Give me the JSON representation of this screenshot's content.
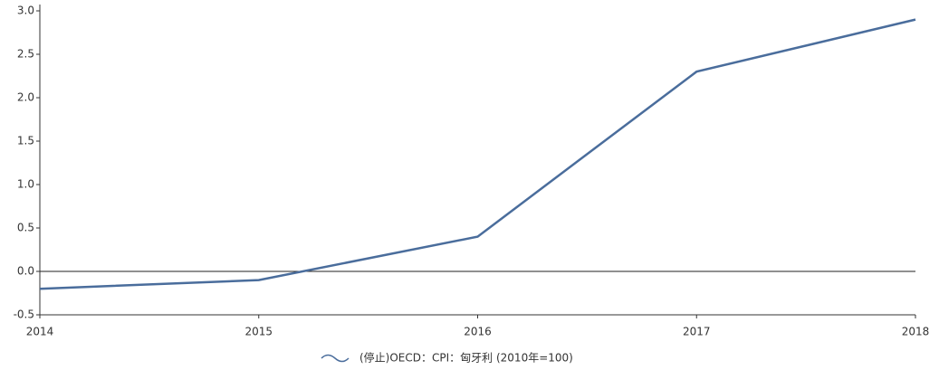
{
  "chart_data": {
    "type": "line",
    "x": [
      2014,
      2015,
      2016,
      2017,
      2018
    ],
    "series": [
      {
        "name": "(停止)OECD：CPI：匈牙利 (2010年=100)",
        "color": "#4a6d9c",
        "values": [
          -0.2,
          -0.1,
          0.4,
          2.3,
          2.9
        ]
      }
    ],
    "xlim": [
      2014,
      2018
    ],
    "xticks": [
      2014,
      2015,
      2016,
      2017,
      2018
    ],
    "ylim": [
      -0.5,
      3.0
    ],
    "yticks": [
      {
        "value": -0.5,
        "label": "-0.5"
      },
      {
        "value": 0,
        "label": "0.0"
      },
      {
        "value": 0.5,
        "label": "0.5"
      },
      {
        "value": 1,
        "label": "1.0"
      },
      {
        "value": 1.5,
        "label": "1.5"
      },
      {
        "value": 2,
        "label": "2.0"
      },
      {
        "value": 2.5,
        "label": "2.5"
      },
      {
        "value": 3,
        "label": "3.0"
      }
    ],
    "zero_line": true,
    "grid": false,
    "legend": "bottom"
  }
}
